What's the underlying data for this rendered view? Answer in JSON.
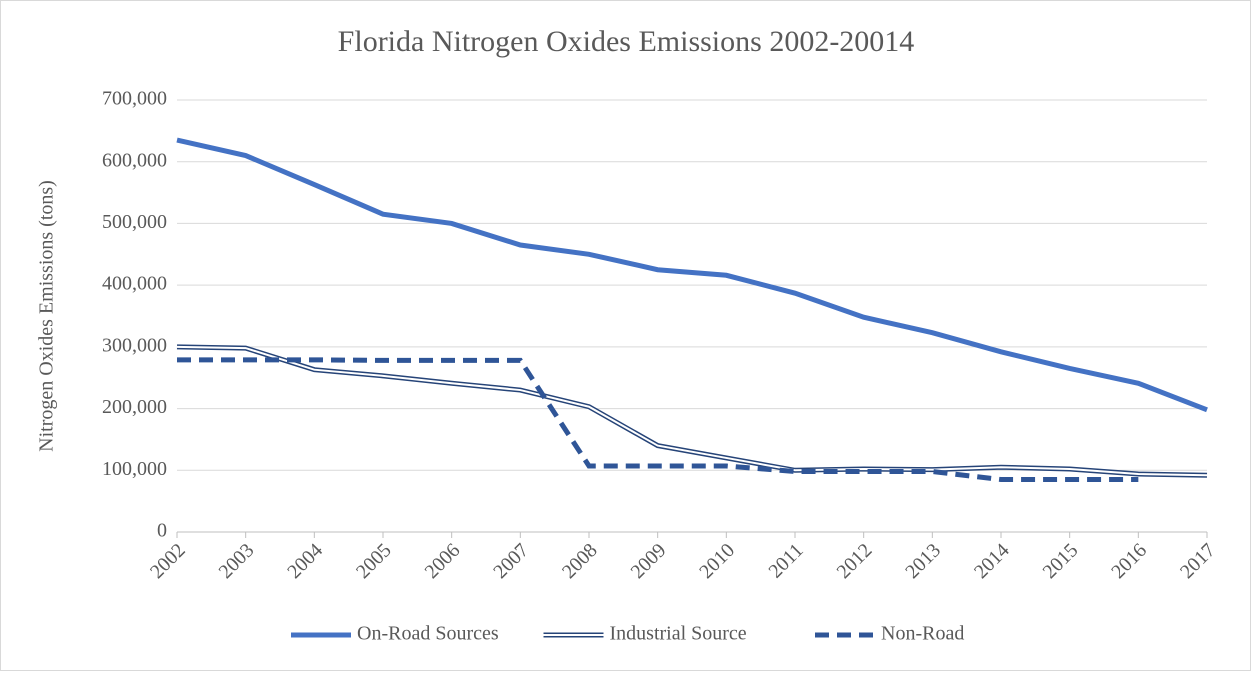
{
  "chart_data": {
    "type": "line",
    "title": "Florida Nitrogen Oxides Emissions 2002-20014",
    "y_label": "Nitrogen Oxides Emissions (tons)",
    "categories": [
      "2002",
      "2003",
      "2004",
      "2005",
      "2006",
      "2007",
      "2008",
      "2009",
      "2010",
      "2011",
      "2012",
      "2013",
      "2014",
      "2015",
      "2016",
      "2017"
    ],
    "series": [
      {
        "name": "On-Road Sources",
        "color": "#4472c4",
        "style": "solid",
        "values": [
          635000,
          610000,
          563000,
          515000,
          500000,
          465000,
          450000,
          425000,
          416000,
          387000,
          348000,
          323000,
          292000,
          265000,
          241000,
          198000
        ]
      },
      {
        "name": "Industrial Source",
        "color": "#264478",
        "style": "double",
        "values": [
          300000,
          298000,
          263000,
          253000,
          241000,
          230000,
          203000,
          140000,
          120000,
          100000,
          102000,
          101000,
          105000,
          102000,
          94000,
          92000
        ]
      },
      {
        "name": "Non-Road",
        "color": "#2f5597",
        "style": "dashed",
        "values": [
          279000,
          279000,
          279000,
          278000,
          278000,
          278000,
          107000,
          107000,
          107000,
          98000,
          98000,
          98000,
          85000,
          85000,
          85000,
          null
        ]
      }
    ],
    "ylim": [
      0,
      700000
    ],
    "yticks": [
      0,
      {
        "value": 100000,
        "label": "100,000"
      },
      {
        "value": 200000,
        "label": "200,000"
      },
      {
        "value": 300000,
        "label": "300,000"
      },
      {
        "value": 400000,
        "label": "400,000"
      },
      {
        "value": 500000,
        "label": "500,000"
      },
      {
        "value": 600000,
        "label": "600,000"
      },
      {
        "value": 700000,
        "label": "700,000"
      }
    ],
    "grid": true,
    "legend": "bottom"
  }
}
